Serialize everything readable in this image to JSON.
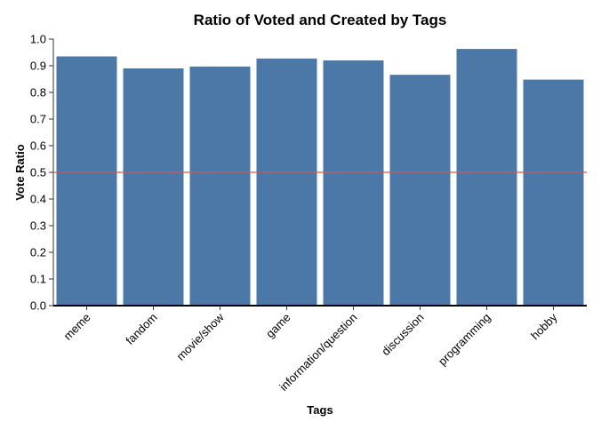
{
  "chart_data": {
    "type": "bar",
    "title": "Ratio of Voted and Created by Tags",
    "xlabel": "Tags",
    "ylabel": "Vote Ratio",
    "categories": [
      "meme",
      "fandom",
      "movie/show",
      "game",
      "information/question",
      "discussion",
      "programming",
      "hobby"
    ],
    "values": [
      0.935,
      0.89,
      0.897,
      0.927,
      0.92,
      0.866,
      0.963,
      0.848
    ],
    "ylim": [
      0,
      1.0
    ],
    "yticks": [
      "0.0",
      "0.1",
      "0.2",
      "0.3",
      "0.4",
      "0.5",
      "0.6",
      "0.7",
      "0.8",
      "0.9",
      "1.0"
    ],
    "reference_line": {
      "y": 0.5,
      "color": "#d9534f"
    },
    "bar_color": "#4c78a8",
    "grid": false,
    "legend": "none"
  }
}
